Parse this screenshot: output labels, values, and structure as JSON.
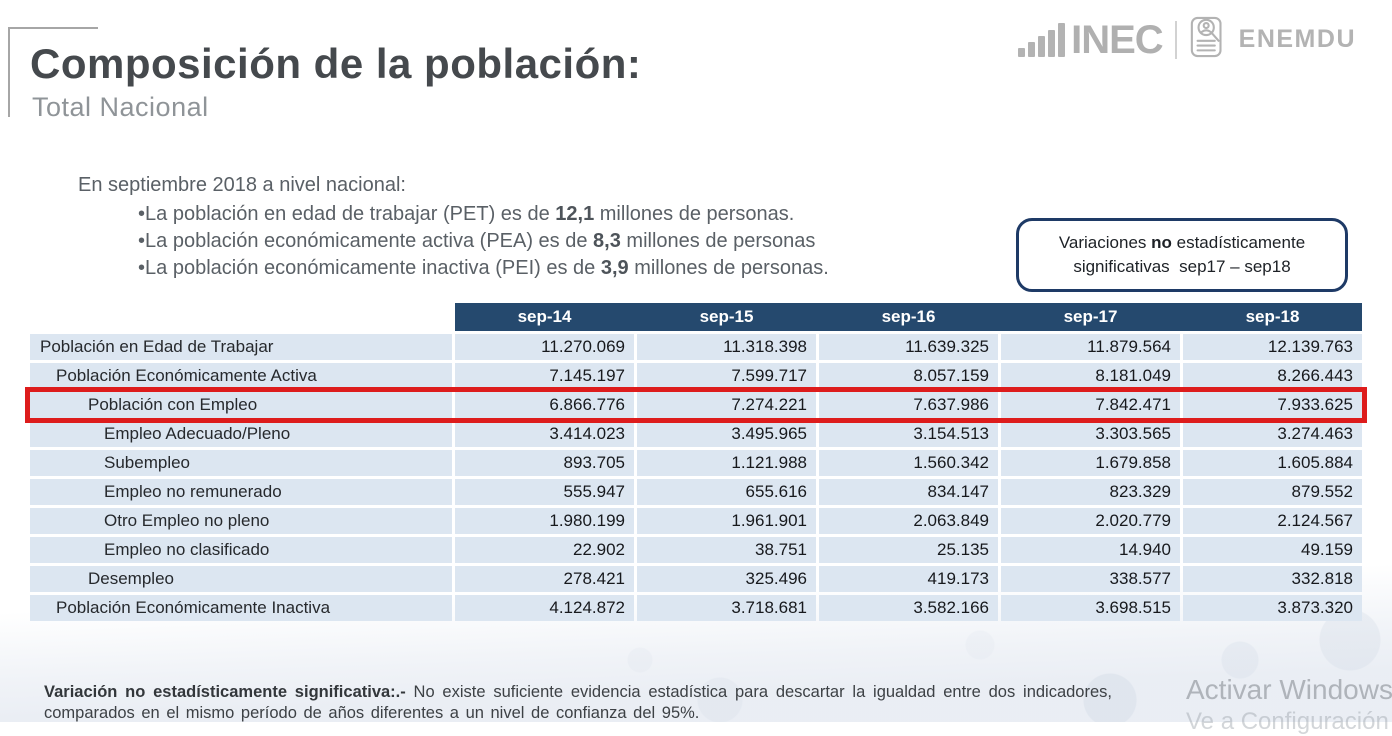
{
  "header": {
    "title": "Composición de la población:",
    "subtitle": "Total Nacional",
    "logo_inec_text": "INEC",
    "logo_enemdu_text": "ENEMDU"
  },
  "intro": {
    "lead": "En septiembre 2018 a nivel nacional:",
    "bullet_char": "•",
    "bullets": [
      {
        "pre": "La población en edad de trabajar (PET) es de ",
        "bold": "12,1",
        "post": " millones de personas."
      },
      {
        "pre": "La población económicamente activa (PEA) es de ",
        "bold": "8,3",
        "post": " millones de personas"
      },
      {
        "pre": "La población económicamente inactiva (PEI) es de ",
        "bold": "3,9",
        "post": " millones de personas."
      }
    ]
  },
  "callout": {
    "line1_pre": "Variaciones ",
    "line1_bold": "no",
    "line1_post": " estadísticamente",
    "line2": "significativas  sep17 – sep18"
  },
  "table": {
    "columns": [
      "sep-14",
      "sep-15",
      "sep-16",
      "sep-17",
      "sep-18"
    ],
    "rows": [
      {
        "label": "Población en Edad de Trabajar",
        "indent": 0,
        "highlight": false,
        "values": [
          "11.270.069",
          "11.318.398",
          "11.639.325",
          "11.879.564",
          "12.139.763"
        ]
      },
      {
        "label": "Población Económicamente Activa",
        "indent": 1,
        "highlight": false,
        "values": [
          "7.145.197",
          "7.599.717",
          "8.057.159",
          "8.181.049",
          "8.266.443"
        ]
      },
      {
        "label": "Población con Empleo",
        "indent": 2,
        "highlight": true,
        "values": [
          "6.866.776",
          "7.274.221",
          "7.637.986",
          "7.842.471",
          "7.933.625"
        ]
      },
      {
        "label": "Empleo Adecuado/Pleno",
        "indent": 3,
        "highlight": false,
        "values": [
          "3.414.023",
          "3.495.965",
          "3.154.513",
          "3.303.565",
          "3.274.463"
        ]
      },
      {
        "label": "Subempleo",
        "indent": 3,
        "highlight": false,
        "values": [
          "893.705",
          "1.121.988",
          "1.560.342",
          "1.679.858",
          "1.605.884"
        ]
      },
      {
        "label": "Empleo no remunerado",
        "indent": 3,
        "highlight": false,
        "values": [
          "555.947",
          "655.616",
          "834.147",
          "823.329",
          "879.552"
        ]
      },
      {
        "label": "Otro Empleo no pleno",
        "indent": 3,
        "highlight": false,
        "values": [
          "1.980.199",
          "1.961.901",
          "2.063.849",
          "2.020.779",
          "2.124.567"
        ]
      },
      {
        "label": "Empleo no clasificado",
        "indent": 3,
        "highlight": false,
        "values": [
          "22.902",
          "38.751",
          "25.135",
          "14.940",
          "49.159"
        ]
      },
      {
        "label": "Desempleo",
        "indent": 2,
        "highlight": false,
        "values": [
          "278.421",
          "325.496",
          "419.173",
          "338.577",
          "332.818"
        ]
      },
      {
        "label": "Población Económicamente Inactiva",
        "indent": 1,
        "highlight": false,
        "values": [
          "4.124.872",
          "3.718.681",
          "3.582.166",
          "3.698.515",
          "3.873.320"
        ]
      }
    ]
  },
  "footnote": {
    "bold": "Variación no estadísticamente significativa:.-",
    "text": " No existe suficiente evidencia estadística para descartar la igualdad entre dos indicadores, comparados en el mismo período de años diferentes a un nivel de confianza del 95%."
  },
  "watermark": {
    "line1": "Activar Windows",
    "line2": "Ve a Configuración"
  },
  "colors": {
    "header_navy": "#25496e",
    "row_blue": "#dce6f1",
    "highlight_red": "#dd1c1c",
    "callout_border": "#1e3a66",
    "logo_gray": "#b3b3b3"
  }
}
